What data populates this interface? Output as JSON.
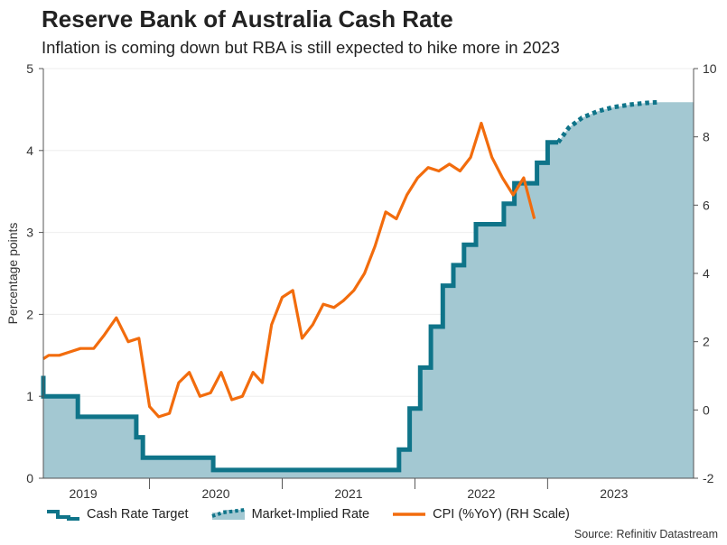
{
  "header": {
    "title": "Reserve Bank of Australia Cash Rate",
    "subtitle": "Inflation is coming down but RBA is still expected to hike more in 2023"
  },
  "source": "Source: Refinitiv Datastream",
  "colors": {
    "cash": "#0f7489",
    "area": "#a3c8d2",
    "cpi": "#f26c0d",
    "grid": "#eeeeee",
    "axis": "#555555"
  },
  "chart_data": {
    "type": "line",
    "x_range": [
      2018.7,
      2023.6
    ],
    "ylabel": "Percentage points",
    "ylim": [
      0,
      5
    ],
    "y_ticks": [
      "0",
      "1",
      "2",
      "3",
      "4",
      "5"
    ],
    "y2lim": [
      -2,
      10
    ],
    "y2_ticks": [
      "-2",
      "0",
      "2",
      "4",
      "6",
      "8",
      "10"
    ],
    "x_ticks": [
      {
        "x": 2019.0,
        "label": "2019"
      },
      {
        "x": 2020.0,
        "label": "2020"
      },
      {
        "x": 2021.0,
        "label": "2021"
      },
      {
        "x": 2022.0,
        "label": "2022"
      },
      {
        "x": 2023.0,
        "label": "2023"
      }
    ],
    "x_dividers": [
      2019.5,
      2020.5,
      2021.5,
      2022.5
    ],
    "legend": [
      {
        "key": "cash",
        "label": "Cash Rate Target"
      },
      {
        "key": "implied",
        "label": "Market-Implied Rate"
      },
      {
        "key": "cpi",
        "label": "CPI (%YoY) (RH Scale)"
      }
    ],
    "series": [
      {
        "name": "Cash Rate Target",
        "axis": "left",
        "style": "step",
        "points": [
          [
            2018.7,
            1.25
          ],
          [
            2018.7,
            1.0
          ],
          [
            2018.96,
            1.0
          ],
          [
            2018.96,
            0.75
          ],
          [
            2019.4,
            0.75
          ],
          [
            2019.4,
            0.5
          ],
          [
            2019.45,
            0.5
          ],
          [
            2019.45,
            0.25
          ],
          [
            2019.98,
            0.25
          ],
          [
            2019.98,
            0.1
          ],
          [
            2021.38,
            0.1
          ],
          [
            2021.38,
            0.35
          ],
          [
            2021.46,
            0.35
          ],
          [
            2021.46,
            0.85
          ],
          [
            2021.54,
            0.85
          ],
          [
            2021.54,
            1.35
          ],
          [
            2021.62,
            1.35
          ],
          [
            2021.62,
            1.85
          ],
          [
            2021.71,
            1.85
          ],
          [
            2021.71,
            2.35
          ],
          [
            2021.79,
            2.35
          ],
          [
            2021.79,
            2.6
          ],
          [
            2021.87,
            2.6
          ],
          [
            2021.87,
            2.85
          ],
          [
            2021.96,
            2.85
          ],
          [
            2021.96,
            3.1
          ],
          [
            2022.17,
            3.1
          ],
          [
            2022.17,
            3.35
          ],
          [
            2022.25,
            3.35
          ],
          [
            2022.25,
            3.6
          ],
          [
            2022.42,
            3.6
          ],
          [
            2022.42,
            3.85
          ],
          [
            2022.5,
            3.85
          ],
          [
            2022.5,
            4.1
          ],
          [
            2022.58,
            4.1
          ]
        ]
      },
      {
        "name": "Market-Implied Rate",
        "axis": "left",
        "style": "dotted",
        "points": [
          [
            2022.58,
            4.1
          ],
          [
            2022.66,
            4.28
          ],
          [
            2022.76,
            4.4
          ],
          [
            2022.88,
            4.48
          ],
          [
            2023.0,
            4.53
          ],
          [
            2023.12,
            4.56
          ],
          [
            2023.24,
            4.58
          ],
          [
            2023.35,
            4.59
          ]
        ]
      },
      {
        "name": "CPI (%YoY) (RH Scale)",
        "axis": "right",
        "style": "line",
        "points": [
          [
            2018.7,
            1.5
          ],
          [
            2018.74,
            1.6
          ],
          [
            2018.82,
            1.6
          ],
          [
            2018.9,
            1.7
          ],
          [
            2018.98,
            1.8
          ],
          [
            2019.08,
            1.8
          ],
          [
            2019.16,
            2.2
          ],
          [
            2019.25,
            2.7
          ],
          [
            2019.34,
            2.0
          ],
          [
            2019.42,
            2.1
          ],
          [
            2019.5,
            0.1
          ],
          [
            2019.57,
            -0.2
          ],
          [
            2019.65,
            -0.1
          ],
          [
            2019.72,
            0.8
          ],
          [
            2019.8,
            1.1
          ],
          [
            2019.88,
            0.4
          ],
          [
            2019.96,
            0.5
          ],
          [
            2020.04,
            1.1
          ],
          [
            2020.12,
            0.3
          ],
          [
            2020.2,
            0.4
          ],
          [
            2020.28,
            1.1
          ],
          [
            2020.35,
            0.8
          ],
          [
            2020.42,
            2.5
          ],
          [
            2020.5,
            3.3
          ],
          [
            2020.58,
            3.5
          ],
          [
            2020.65,
            2.1
          ],
          [
            2020.73,
            2.5
          ],
          [
            2020.81,
            3.1
          ],
          [
            2020.89,
            3.0
          ],
          [
            2020.96,
            3.2
          ],
          [
            2021.04,
            3.5
          ],
          [
            2021.12,
            4.0
          ],
          [
            2021.2,
            4.8
          ],
          [
            2021.28,
            5.8
          ],
          [
            2021.36,
            5.6
          ],
          [
            2021.44,
            6.3
          ],
          [
            2021.52,
            6.8
          ],
          [
            2021.6,
            7.1
          ],
          [
            2021.68,
            7.0
          ],
          [
            2021.76,
            7.2
          ],
          [
            2021.84,
            7.0
          ],
          [
            2021.92,
            7.4
          ],
          [
            2022.0,
            8.4
          ],
          [
            2022.08,
            7.4
          ],
          [
            2022.16,
            6.8
          ],
          [
            2022.24,
            6.3
          ],
          [
            2022.32,
            6.8
          ],
          [
            2022.4,
            5.6
          ]
        ]
      }
    ]
  }
}
